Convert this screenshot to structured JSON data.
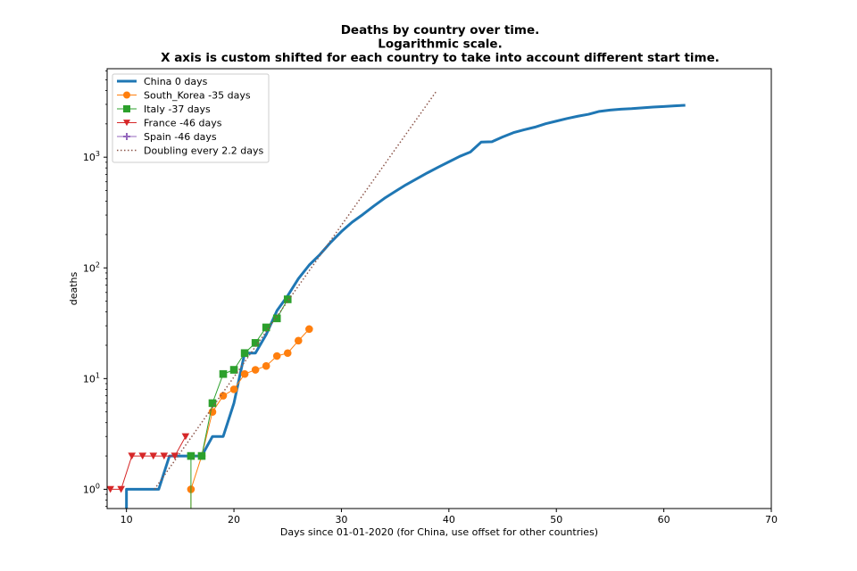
{
  "chart_data": {
    "type": "line",
    "title_lines": [
      "Deaths by country over time.",
      "Logarithmic scale.",
      "X axis is custom shifted for each country to take into account different start time."
    ],
    "xlabel": "Days since 01-01-2020 (for China, use offset for other countries)",
    "ylabel": "deaths",
    "xlim": [
      8.2,
      70
    ],
    "ylim": [
      0.67,
      6300
    ],
    "yscale": "log",
    "xticks": [
      10,
      20,
      30,
      40,
      50,
      60,
      70
    ],
    "yticks": [
      {
        "value": 1,
        "base": "10",
        "exp": "0"
      },
      {
        "value": 10,
        "base": "10",
        "exp": "1"
      },
      {
        "value": 100,
        "base": "10",
        "exp": "2"
      },
      {
        "value": 1000,
        "base": "10",
        "exp": "3"
      }
    ],
    "grid": false,
    "legend_position": "upper left",
    "series": [
      {
        "name": "China 0 days",
        "color": "#1f77b4",
        "marker": "none",
        "line_width": 3,
        "x": [
          10,
          10,
          11,
          12,
          13,
          14,
          15,
          16,
          17,
          18,
          19,
          20,
          21,
          22,
          23,
          24,
          25,
          26,
          27,
          28,
          29,
          30,
          31,
          32,
          33,
          34,
          35,
          36,
          37,
          38,
          39,
          40,
          41,
          42,
          43,
          44,
          45,
          46,
          47,
          48,
          49,
          50,
          51,
          52,
          53,
          54,
          55,
          56,
          57,
          58,
          59,
          60,
          61,
          62
        ],
        "y": [
          0.6,
          1,
          1,
          1,
          1,
          2,
          2,
          2,
          2,
          3,
          3,
          6,
          17,
          17,
          25,
          41,
          56,
          80,
          106,
          132,
          170,
          213,
          259,
          304,
          361,
          425,
          490,
          563,
          637,
          722,
          811,
          908,
          1016,
          1113,
          1368,
          1380,
          1523,
          1665,
          1770,
          1868,
          2004,
          2118,
          2236,
          2345,
          2442,
          2592,
          2663,
          2715,
          2744,
          2788,
          2835,
          2870,
          2912,
          2946
        ]
      },
      {
        "name": "South_Korea -35 days",
        "color": "#ff7f0e",
        "marker": "circle",
        "line_width": 1,
        "x": [
          16,
          16,
          17,
          18,
          19,
          20,
          21,
          22,
          23,
          24,
          25,
          26,
          27
        ],
        "y": [
          0.6,
          1,
          2,
          5,
          7,
          8,
          11,
          12,
          13,
          16,
          17,
          22,
          28
        ],
        "marker_from": 1
      },
      {
        "name": "Italy -37 days",
        "color": "#2ca02c",
        "marker": "square",
        "line_width": 1,
        "x": [
          16,
          16,
          17,
          18,
          19,
          20,
          21,
          22,
          23,
          24,
          25
        ],
        "y": [
          0.6,
          2,
          2,
          6,
          11,
          12,
          17,
          21,
          29,
          35,
          52
        ],
        "marker_from": 1
      },
      {
        "name": "France -46 days",
        "color": "#d62728",
        "marker": "triangle_down",
        "line_width": 1,
        "x": [
          8.5,
          9.5,
          10.5,
          11.5,
          12.5,
          13.5,
          14.5,
          15.5
        ],
        "y": [
          1,
          1,
          2,
          2,
          2,
          2,
          2,
          3
        ]
      },
      {
        "name": "Spain -46 days",
        "color": "#9467bd",
        "marker": "plus",
        "line_width": 1,
        "x": [],
        "y": []
      },
      {
        "name": "Doubling every 2.2 days",
        "color": "#8c564b",
        "marker": "none",
        "line_width": 1.5,
        "dashed": true,
        "x": [
          12.6,
          38.8
        ],
        "y": [
          1,
          3900
        ]
      }
    ]
  }
}
